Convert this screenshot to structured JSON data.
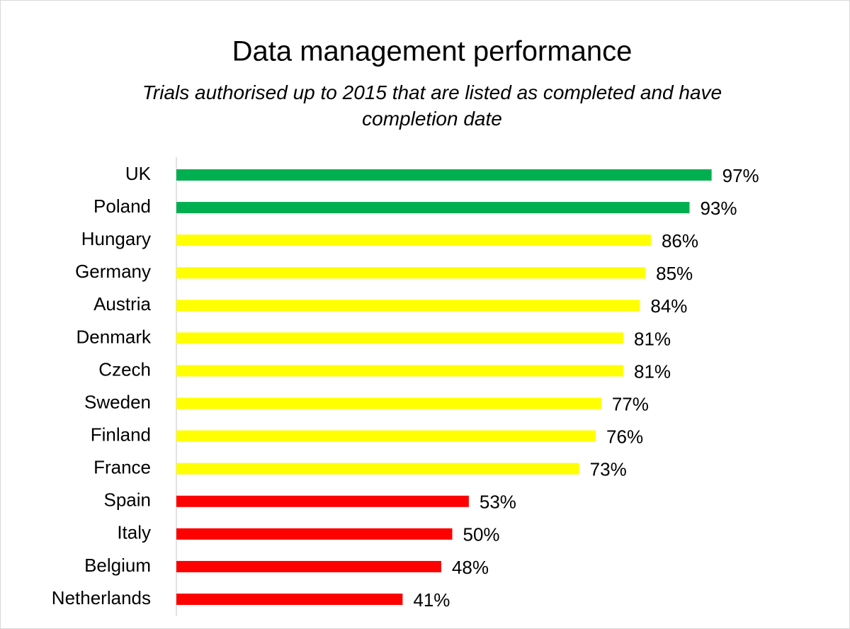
{
  "chart_data": {
    "type": "bar",
    "orientation": "horizontal",
    "title": "Data management performance",
    "subtitle": "Trials authorised up to 2015 that are listed as completed and have completion date",
    "categories": [
      "UK",
      "Poland",
      "Hungary",
      "Germany",
      "Austria",
      "Denmark",
      "Czech",
      "Sweden",
      "Finland",
      "France",
      "Spain",
      "Italy",
      "Belgium",
      "Netherlands"
    ],
    "values": [
      97,
      93,
      86,
      85,
      84,
      81,
      81,
      77,
      76,
      73,
      53,
      50,
      48,
      41
    ],
    "value_labels": [
      "97%",
      "93%",
      "86%",
      "85%",
      "84%",
      "81%",
      "81%",
      "77%",
      "76%",
      "73%",
      "53%",
      "50%",
      "48%",
      "41%"
    ],
    "colors": [
      "#00b050",
      "#00b050",
      "#ffff00",
      "#ffff00",
      "#ffff00",
      "#ffff00",
      "#ffff00",
      "#ffff00",
      "#ffff00",
      "#ffff00",
      "#ff0000",
      "#ff0000",
      "#ff0000",
      "#ff0000"
    ],
    "xlim": [
      0,
      100
    ]
  }
}
